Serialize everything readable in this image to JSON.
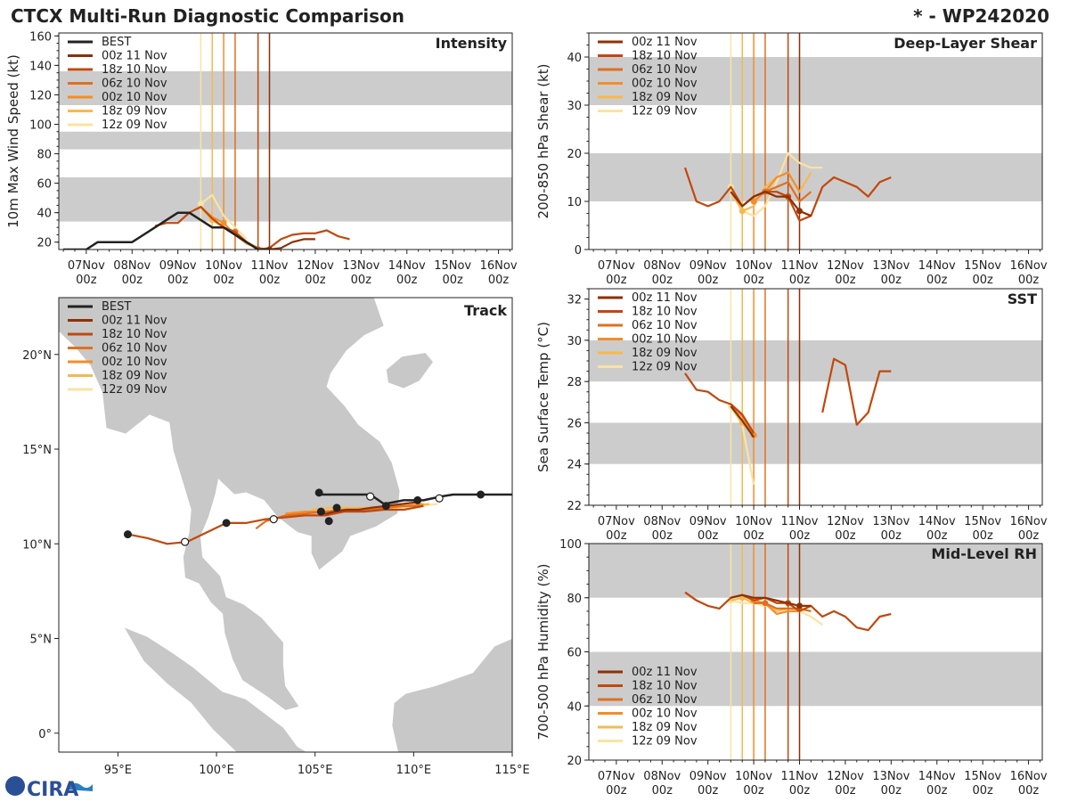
{
  "title_left": "CTCX Multi-Run Diagnostic Comparison",
  "title_right": "* - WP242020",
  "logo_text": "CIRA",
  "colors": {
    "BEST": "#222222",
    "00z 11 Nov": "#8c3107",
    "18z 10 Nov": "#c2480b",
    "06z 10 Nov": "#e0701f",
    "00z 10 Nov": "#f28e2c",
    "18z 09 Nov": "#f8b84e",
    "12z 09 Nov": "#fbe3a0"
  },
  "run_order": [
    "00z 11 Nov",
    "18z 10 Nov",
    "06z 10 Nov",
    "00z 10 Nov",
    "18z 09 Nov",
    "12z 09 Nov"
  ],
  "run_init_times": {
    "00z 11 Nov": 4.0,
    "18z 10 Nov": 3.75,
    "06z 10 Nov": 3.25,
    "00z 10 Nov": 3.0,
    "18z 09 Nov": 2.75,
    "12z 09 Nov": 2.5
  },
  "time_ticks": [
    {
      "v": 0,
      "l1": "07Nov",
      "l2": "00z"
    },
    {
      "v": 1,
      "l1": "08Nov",
      "l2": "00z"
    },
    {
      "v": 2,
      "l1": "09Nov",
      "l2": "00z"
    },
    {
      "v": 3,
      "l1": "10Nov",
      "l2": "00z"
    },
    {
      "v": 4,
      "l1": "11Nov",
      "l2": "00z"
    },
    {
      "v": 5,
      "l1": "12Nov",
      "l2": "00z"
    },
    {
      "v": 6,
      "l1": "13Nov",
      "l2": "00z"
    },
    {
      "v": 7,
      "l1": "14Nov",
      "l2": "00z"
    },
    {
      "v": 8,
      "l1": "15Nov",
      "l2": "00z"
    },
    {
      "v": 9,
      "l1": "16Nov",
      "l2": "00z"
    }
  ],
  "chart_data": [
    {
      "id": "intensity",
      "type": "line",
      "title": "Intensity",
      "xlabel": "",
      "ylabel": "10m Max Wind Speed (kt)",
      "xlim": [
        -0.6,
        9.3
      ],
      "ylim": [
        15,
        162
      ],
      "yticks": [
        20,
        40,
        60,
        80,
        100,
        120,
        140,
        160
      ],
      "bands": [
        [
          34,
          64
        ],
        [
          83,
          95
        ],
        [
          113,
          136
        ]
      ],
      "legend": "top-left",
      "legend_entries": [
        "BEST",
        "00z 11 Nov",
        "18z 10 Nov",
        "06z 10 Nov",
        "00z 10 Nov",
        "18z 09 Nov",
        "12z 09 Nov"
      ],
      "series": [
        {
          "name": "BEST",
          "x": [
            -0.5,
            -0.25,
            0,
            0.25,
            0.5,
            0.75,
            1.0,
            1.25,
            1.5,
            1.75,
            2.0,
            2.25,
            2.5,
            2.75,
            3.0,
            3.25,
            3.5,
            3.75,
            4.0
          ],
          "y": [
            15,
            15,
            15,
            20,
            20,
            20,
            20,
            25,
            30,
            35,
            40,
            40,
            35,
            30,
            30,
            25,
            20,
            15,
            15
          ]
        },
        {
          "name": "00z 11 Nov",
          "x": [
            4.0,
            4.25,
            4.5,
            4.75,
            5.0
          ],
          "y": [
            15,
            16,
            20,
            22,
            22
          ]
        },
        {
          "name": "18z 10 Nov",
          "x": [
            1.5,
            1.75,
            2.0,
            2.25,
            2.5,
            2.75,
            3.0,
            3.25,
            3.5,
            3.75,
            4.0,
            4.25,
            4.5,
            4.75,
            5.0,
            5.25,
            5.5,
            5.75
          ],
          "y": [
            31,
            33,
            33,
            40,
            44,
            36,
            30,
            27,
            20,
            15,
            16,
            22,
            25,
            26,
            26,
            28,
            24,
            22
          ]
        },
        {
          "name": "06z 10 Nov",
          "x": [
            3.25,
            3.5,
            3.75,
            4.0
          ],
          "y": [
            27,
            20,
            16,
            15
          ]
        },
        {
          "name": "00z 10 Nov",
          "x": [
            2.5,
            2.75,
            3.0,
            3.25,
            3.5,
            3.75
          ],
          "y": [
            44,
            37,
            33,
            25,
            19,
            16
          ]
        },
        {
          "name": "18z 09 Nov",
          "x": [
            2.5,
            2.75,
            3.0,
            3.25,
            3.5
          ],
          "y": [
            44,
            35,
            30,
            27,
            20
          ]
        },
        {
          "name": "12z 09 Nov",
          "x": [
            2.5,
            2.75,
            3.0,
            3.25,
            3.5
          ],
          "y": [
            46,
            52,
            38,
            30,
            22
          ]
        }
      ]
    },
    {
      "id": "shear",
      "type": "line",
      "title": "Deep-Layer Shear",
      "xlabel": "",
      "ylabel": "200-850 hPa Shear (kt)",
      "xlim": [
        -0.6,
        9.3
      ],
      "ylim": [
        0,
        45
      ],
      "yticks": [
        0,
        10,
        20,
        30,
        40
      ],
      "bands": [
        [
          10,
          20
        ],
        [
          30,
          40
        ]
      ],
      "legend": "top-left",
      "legend_entries": [
        "00z 11 Nov",
        "18z 10 Nov",
        "06z 10 Nov",
        "00z 10 Nov",
        "18z 09 Nov",
        "12z 09 Nov"
      ],
      "series": [
        {
          "name": "00z 11 Nov",
          "x": [
            2.5,
            2.75,
            3.0,
            3.25,
            3.5,
            3.75,
            4.0,
            4.25
          ],
          "y": [
            12,
            9,
            11,
            12,
            11,
            11,
            8,
            7
          ]
        },
        {
          "name": "18z 10 Nov",
          "x": [
            1.5,
            1.75,
            2.0,
            2.25,
            2.5,
            2.75,
            3.0,
            3.25,
            3.5,
            3.75,
            4.0,
            4.25,
            4.5,
            4.75,
            5.0,
            5.25,
            5.5,
            5.75,
            6.0
          ],
          "y": [
            17,
            10,
            9,
            10,
            13,
            9,
            11,
            12,
            12,
            11,
            6,
            7,
            13,
            15,
            14,
            13,
            11,
            14,
            15
          ]
        },
        {
          "name": "06z 10 Nov",
          "x": [
            3.0,
            3.25,
            3.5,
            3.75,
            4.0,
            4.25
          ],
          "y": [
            11,
            12,
            13,
            14,
            10,
            12
          ]
        },
        {
          "name": "00z 10 Nov",
          "x": [
            3.0,
            3.25,
            3.5,
            3.75,
            4.0
          ],
          "y": [
            10,
            12,
            15,
            16,
            12
          ]
        },
        {
          "name": "18z 09 Nov",
          "x": [
            2.5,
            2.75,
            3.0,
            3.25,
            3.5,
            3.75,
            4.0,
            4.25
          ],
          "y": [
            12,
            8,
            9,
            13,
            15,
            16,
            12,
            16
          ]
        },
        {
          "name": "12z 09 Nov",
          "x": [
            2.5,
            2.75,
            3.0,
            3.25,
            3.5,
            3.75,
            4.0,
            4.25,
            4.5
          ],
          "y": [
            13,
            8,
            7,
            9,
            14,
            20,
            18,
            17,
            17
          ]
        }
      ]
    },
    {
      "id": "track",
      "type": "scatter",
      "title": "Track",
      "xlabel": "",
      "ylabel": "",
      "xlim": [
        92,
        115
      ],
      "ylim": [
        -1,
        23
      ],
      "xticks": [
        95,
        100,
        105,
        110,
        115
      ],
      "xticklabels": [
        "95°E",
        "100°E",
        "105°E",
        "110°E",
        "115°E"
      ],
      "yticks": [
        0,
        5,
        10,
        15,
        20
      ],
      "yticklabels": [
        "0°",
        "5°N",
        "10°N",
        "15°N",
        "20°N"
      ],
      "legend": "top-left",
      "legend_entries": [
        "BEST",
        "00z 11 Nov",
        "18z 10 Nov",
        "06z 10 Nov",
        "00z 10 Nov",
        "18z 09 Nov",
        "12z 09 Nov"
      ],
      "series": [
        {
          "name": "BEST",
          "lon": [
            115.0,
            114.0,
            113.0,
            112.0,
            111.4,
            110.5,
            110.0,
            109.5,
            109.0,
            108.5,
            107.8,
            107.0,
            106.2,
            105.3,
            105.3
          ],
          "lat": [
            12.6,
            12.6,
            12.6,
            12.6,
            12.5,
            12.3,
            12.3,
            12.3,
            12.2,
            12.1,
            12.6,
            12.6,
            12.6,
            12.6,
            12.7
          ],
          "markers_filled": [
            [
              113.4,
              12.6
            ],
            [
              110.2,
              12.3
            ],
            [
              105.2,
              12.7
            ]
          ],
          "markers_open": [
            [
              111.3,
              12.4
            ],
            [
              107.8,
              12.5
            ]
          ]
        },
        {
          "name": "00z 11 Nov",
          "lon": [
            110.2,
            109.4,
            108.6,
            107.8,
            107.2,
            106.6,
            106.0,
            105.6,
            105.3
          ],
          "lat": [
            12.2,
            12.1,
            12.0,
            11.9,
            11.8,
            11.8,
            11.7,
            11.6,
            11.6
          ],
          "markers_filled": [
            [
              108.6,
              12.0
            ],
            [
              106.1,
              11.9
            ],
            [
              105.3,
              11.7
            ]
          ],
          "markers_open": []
        },
        {
          "name": "18z 10 Nov",
          "lon": [
            110.5,
            109.5,
            108.5,
            107.5,
            106.5,
            105.5,
            104.5,
            103.5,
            102.5,
            101.5,
            100.5,
            99.5,
            98.5,
            97.5,
            96.5,
            95.5
          ],
          "lat": [
            12.0,
            11.8,
            11.8,
            11.7,
            11.7,
            11.5,
            11.5,
            11.4,
            11.3,
            11.1,
            11.1,
            10.6,
            10.1,
            10.0,
            10.3,
            10.5
          ],
          "markers_filled": [
            [
              105.7,
              11.2
            ],
            [
              100.5,
              11.1
            ],
            [
              95.5,
              10.5
            ]
          ],
          "markers_open": [
            [
              102.9,
              11.3
            ],
            [
              98.4,
              10.1
            ]
          ]
        },
        {
          "name": "06z 10 Nov",
          "lon": [
            110.5,
            109.5,
            108.5,
            107.5,
            106.5,
            105.5,
            104.5,
            103.5,
            102.5,
            102.0
          ],
          "lat": [
            12.0,
            12.0,
            11.9,
            11.8,
            11.8,
            11.7,
            11.6,
            11.5,
            11.2,
            10.8
          ],
          "markers_filled": [],
          "markers_open": []
        },
        {
          "name": "00z 10 Nov",
          "lon": [
            110.5,
            109.5,
            108.5,
            107.5,
            106.5,
            105.5,
            104.5,
            103.5
          ],
          "lat": [
            12.1,
            12.0,
            11.9,
            11.8,
            11.8,
            11.7,
            11.7,
            11.6
          ],
          "markers_filled": [],
          "markers_open": []
        },
        {
          "name": "18z 09 Nov",
          "lon": [
            110.8,
            109.8,
            108.8,
            107.8,
            106.8,
            105.8,
            104.8
          ],
          "lat": [
            12.1,
            12.0,
            11.9,
            11.9,
            11.9,
            11.9,
            11.8
          ],
          "markers_filled": [],
          "markers_open": []
        },
        {
          "name": "12z 09 Nov",
          "lon": [
            111.2,
            110.2,
            109.2,
            108.2,
            107.2,
            106.2,
            105.2,
            104.2
          ],
          "lat": [
            12.1,
            12.0,
            11.9,
            11.8,
            11.8,
            11.8,
            11.7,
            11.6
          ],
          "markers_filled": [],
          "markers_open": []
        }
      ]
    },
    {
      "id": "sst",
      "type": "line",
      "title": "SST",
      "xlabel": "",
      "ylabel": "Sea Surface Temp (°C)",
      "xlim": [
        -0.6,
        9.3
      ],
      "ylim": [
        22,
        32.5
      ],
      "yticks": [
        22,
        24,
        26,
        28,
        30,
        32
      ],
      "bands": [
        [
          24,
          26
        ],
        [
          28,
          30
        ]
      ],
      "legend": "top-left",
      "legend_entries": [
        "00z 11 Nov",
        "18z 10 Nov",
        "06z 10 Nov",
        "00z 10 Nov",
        "18z 09 Nov",
        "12z 09 Nov"
      ],
      "series": [
        {
          "name": "00z 11 Nov",
          "x": [
            2.5,
            2.75,
            3.0
          ],
          "y": [
            26.8,
            26.1,
            25.3
          ]
        },
        {
          "name": "18z 10 Nov",
          "x": [
            1.5,
            1.75,
            2.0,
            2.25,
            2.5,
            2.75,
            3.0
          ],
          "y": [
            28.4,
            27.6,
            27.5,
            27.1,
            26.9,
            26.4,
            25.5
          ]
        },
        {
          "name": "18z 10 Nov",
          "x": [
            4.5,
            4.75,
            5.0,
            5.25,
            5.5,
            5.75,
            6.0
          ],
          "y": [
            26.5,
            29.1,
            28.8,
            25.9,
            26.5,
            28.5,
            28.5
          ]
        },
        {
          "name": "06z 10 Nov",
          "x": [
            2.5,
            2.75,
            3.0
          ],
          "y": [
            26.9,
            26.4,
            25.5
          ]
        },
        {
          "name": "00z 10 Nov",
          "x": [
            2.5,
            2.75,
            3.0
          ],
          "y": [
            26.9,
            26.3,
            25.4
          ]
        },
        {
          "name": "18z 09 Nov",
          "x": [
            2.5,
            2.75,
            3.0
          ],
          "y": [
            26.8,
            26.0,
            25.4
          ]
        },
        {
          "name": "12z 09 Nov",
          "x": [
            2.5,
            2.75,
            3.0
          ],
          "y": [
            26.8,
            25.9,
            23.0
          ]
        }
      ]
    },
    {
      "id": "rh",
      "type": "line",
      "title": "Mid-Level RH",
      "xlabel": "",
      "ylabel": "700-500 hPa Humidity (%)",
      "xlim": [
        -0.6,
        9.3
      ],
      "ylim": [
        20,
        100
      ],
      "yticks": [
        20,
        40,
        60,
        80,
        100
      ],
      "bands": [
        [
          40,
          60
        ],
        [
          80,
          100
        ]
      ],
      "legend": "bottom-left",
      "legend_entries": [
        "00z 11 Nov",
        "18z 10 Nov",
        "06z 10 Nov",
        "00z 10 Nov",
        "18z 09 Nov",
        "12z 09 Nov"
      ],
      "series": [
        {
          "name": "00z 11 Nov",
          "x": [
            2.5,
            2.75,
            3.0,
            3.25,
            3.5,
            3.75,
            4.0,
            4.25
          ],
          "y": [
            80,
            81,
            80,
            80,
            79,
            78,
            77,
            77
          ]
        },
        {
          "name": "18z 10 Nov",
          "x": [
            1.5,
            1.75,
            2.0,
            2.25,
            2.5,
            2.75,
            3.0,
            3.25,
            3.5,
            3.75,
            4.0,
            4.25,
            4.5,
            4.75,
            5.0,
            5.25,
            5.5,
            5.75,
            6.0
          ],
          "y": [
            82,
            79,
            77,
            76,
            80,
            81,
            79,
            80,
            78,
            78,
            75,
            77,
            73,
            75,
            73,
            69,
            68,
            73,
            74
          ]
        },
        {
          "name": "06z 10 Nov",
          "x": [
            3.0,
            3.25,
            3.5,
            3.75,
            4.0,
            4.25
          ],
          "y": [
            78,
            78,
            76,
            76,
            76,
            75
          ]
        },
        {
          "name": "00z 10 Nov",
          "x": [
            3.0,
            3.25,
            3.5,
            3.75,
            4.0
          ],
          "y": [
            79,
            78,
            74,
            75,
            75
          ]
        },
        {
          "name": "18z 09 Nov",
          "x": [
            2.5,
            2.75,
            3.0,
            3.25,
            3.5,
            3.75,
            4.0,
            4.25
          ],
          "y": [
            79,
            80,
            78,
            78,
            75,
            76,
            76,
            75
          ]
        },
        {
          "name": "12z 09 Nov",
          "x": [
            2.5,
            2.75,
            3.0,
            3.25,
            3.5,
            3.75,
            4.0,
            4.25,
            4.5
          ],
          "y": [
            79,
            78,
            78,
            77,
            76,
            76,
            75,
            73,
            70
          ]
        }
      ]
    }
  ]
}
